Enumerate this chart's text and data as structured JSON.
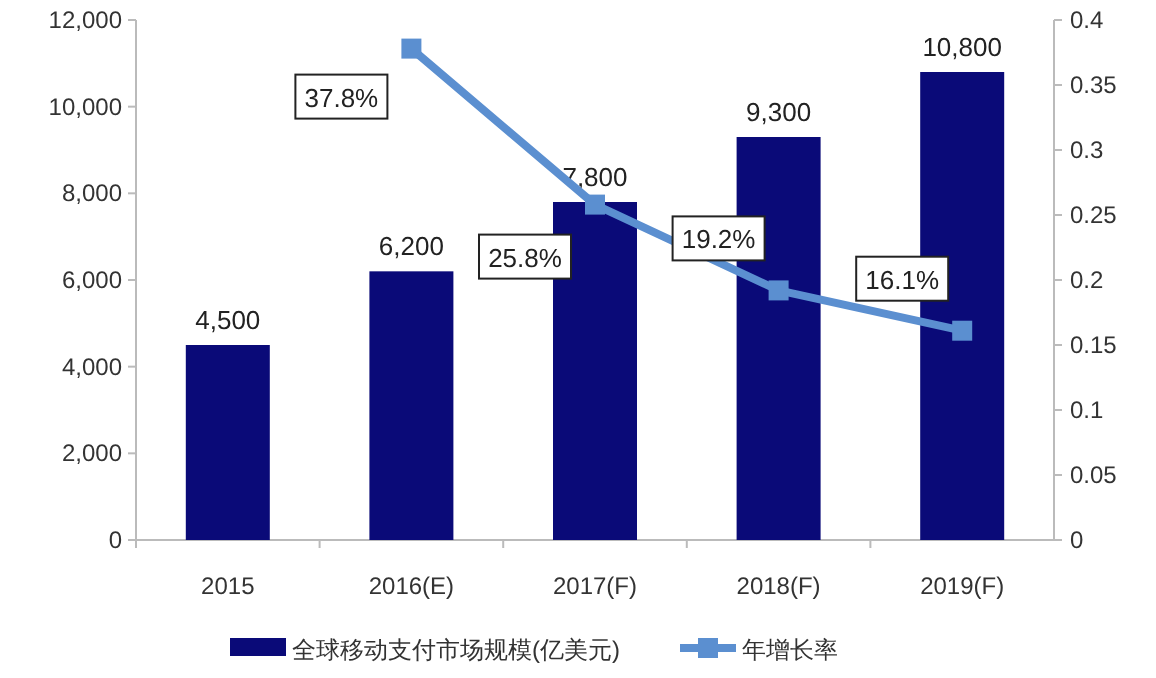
{
  "chart_data": {
    "type": "bar",
    "categories": [
      "2015",
      "2016(E)",
      "2017(F)",
      "2018(F)",
      "2019(F)"
    ],
    "series": [
      {
        "name": "全球移动支付市场规模(亿美元)",
        "color": "#0a0a78",
        "values": [
          4500,
          6200,
          7800,
          9300,
          10800
        ],
        "value_labels": [
          "4,500",
          "6,200",
          "7,800",
          "9,300",
          "10,800"
        ]
      },
      {
        "name": "年增长率",
        "type": "line",
        "axis": "y2",
        "color": "#5b8fd0",
        "marker": "square",
        "values": [
          null,
          0.378,
          0.258,
          0.192,
          0.161
        ],
        "value_labels": [
          null,
          "37.8%",
          "25.8%",
          "19.2%",
          "16.1%"
        ]
      }
    ],
    "ylim": [
      0,
      12000
    ],
    "yticks": [
      0,
      {
        "value": 2000,
        "label": "2,000"
      },
      {
        "value": 4000,
        "label": "4,000"
      },
      {
        "value": 6000,
        "label": "6,000"
      },
      {
        "value": 8000,
        "label": "8,000"
      },
      {
        "value": 10000,
        "label": "10,000"
      },
      {
        "value": 12000,
        "label": "12,000"
      }
    ],
    "y2lim": [
      0,
      0.4
    ],
    "y2ticks": [
      0,
      0.05,
      0.1,
      0.15,
      0.2,
      0.25,
      0.3,
      0.35,
      0.4
    ],
    "legend": "bottom",
    "grid": false
  }
}
